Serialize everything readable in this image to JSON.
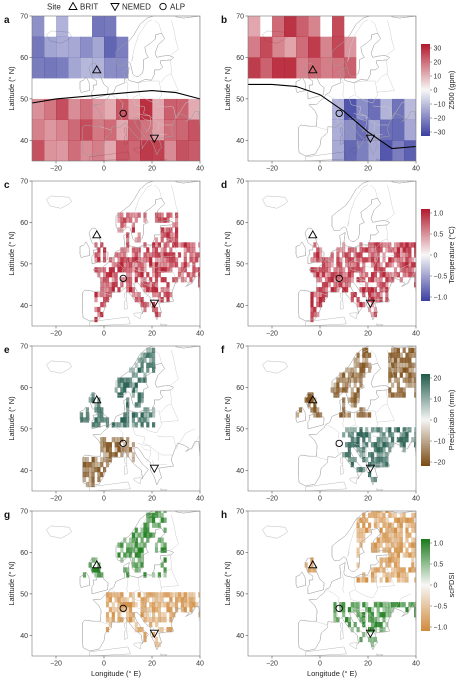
{
  "legend": {
    "title": "Site",
    "items": [
      {
        "name": "BRIT",
        "marker": "triangle-up"
      },
      {
        "name": "NEMED",
        "marker": "triangle-down"
      },
      {
        "name": "ALP",
        "marker": "circle"
      }
    ]
  },
  "axes": {
    "xlabel": "Longitude (° E)",
    "ylabel": "Latitude (° N)",
    "xticks": [
      "−20",
      "0",
      "20",
      "40"
    ],
    "yticks": [
      "40",
      "50",
      "60",
      "70"
    ],
    "xlim": [
      -30,
      40
    ],
    "ylim": [
      35,
      70
    ]
  },
  "sites": [
    {
      "name": "BRIT",
      "lon": -3,
      "lat": 57
    },
    {
      "name": "NEMED",
      "lon": 21,
      "lat": 40.5
    },
    {
      "name": "ALP",
      "lon": 8,
      "lat": 46.5
    }
  ],
  "panels": [
    {
      "id": "a",
      "label": "a",
      "variable": "Z500",
      "phase": "left",
      "anomaly": "BRIT low, southern Europe high",
      "jet": [
        [
          -30,
          49
        ],
        [
          -20,
          50
        ],
        [
          -10,
          50.5
        ],
        [
          0,
          51
        ],
        [
          10,
          51.5
        ],
        [
          20,
          52
        ],
        [
          30,
          51.5
        ],
        [
          40,
          50
        ]
      ]
    },
    {
      "id": "b",
      "label": "b",
      "variable": "Z500",
      "phase": "right",
      "anomaly": "BRIT high, southeast low",
      "jet": [
        [
          -30,
          53.5
        ],
        [
          -20,
          53.5
        ],
        [
          -10,
          53
        ],
        [
          0,
          51
        ],
        [
          10,
          47
        ],
        [
          20,
          42
        ],
        [
          30,
          38
        ],
        [
          40,
          38.5
        ]
      ]
    },
    {
      "id": "c",
      "label": "c",
      "variable": "Temperature",
      "phase": "left"
    },
    {
      "id": "d",
      "label": "d",
      "variable": "Temperature",
      "phase": "right"
    },
    {
      "id": "e",
      "label": "e",
      "variable": "Precipitation",
      "phase": "left"
    },
    {
      "id": "f",
      "label": "f",
      "variable": "Precipitation",
      "phase": "right"
    },
    {
      "id": "g",
      "label": "g",
      "variable": "scPDSI",
      "phase": "left"
    },
    {
      "id": "h",
      "label": "h",
      "variable": "scPDSI",
      "phase": "right"
    }
  ],
  "colorbars": [
    {
      "label": "Z500 (gpm)",
      "ticks": [
        "30",
        "20",
        "10",
        "0",
        "−10",
        "−20",
        "−30"
      ],
      "high": "#b2182b",
      "mid": "#f7f7f7",
      "low": "#3b3f9f"
    },
    {
      "label": "Temperature (°C)",
      "ticks": [
        "1.0",
        "0.5",
        "0",
        "−0.5",
        "−1.0"
      ],
      "high": "#b2182b",
      "mid": "#f7f7f7",
      "low": "#3b3f9f"
    },
    {
      "label": "Precipitation (mm)",
      "ticks": [
        "20",
        "10",
        "0",
        "−10",
        "−20"
      ],
      "high": "#1f5a4a",
      "mid": "#f5f5f5",
      "low": "#7a4a12"
    },
    {
      "label": "scPDSI",
      "ticks": [
        "1.0",
        "0.5",
        "0",
        "−0.5",
        "−1.0"
      ],
      "high": "#1a7a1a",
      "mid": "#f7f7f7",
      "low": "#d08a3c"
    }
  ]
}
